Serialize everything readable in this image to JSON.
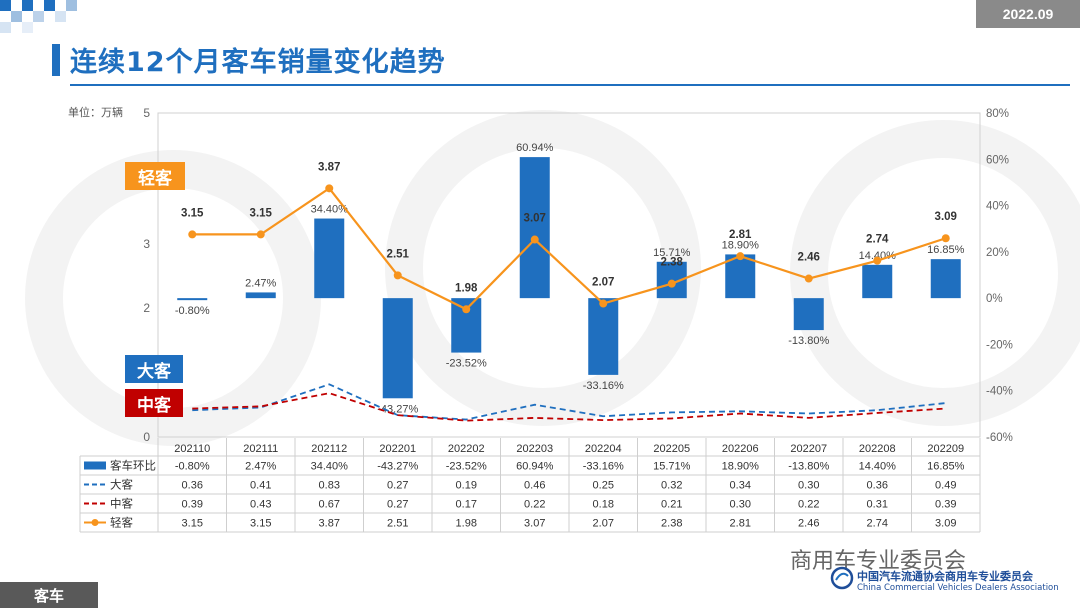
{
  "period": "2022.09",
  "title": "连续12个月客车销量变化趋势",
  "footer_label": "客车",
  "org": {
    "wechat_name": "商用车专业委员会",
    "cn_name": "中国汽车流通协会商用车专业委员会",
    "en_name": "China Commercial Vehicles Dealers Association"
  },
  "tags": {
    "light": "轻客",
    "large": "大客",
    "mid": "中客"
  },
  "colors": {
    "bar": "#1f6fbf",
    "light": "#f7941d",
    "large": "#1f6fbf",
    "mid": "#c00000",
    "accent": "#1f6fbf"
  },
  "chart_data": {
    "type": "bar",
    "unit_label": "单位：万辆",
    "categories": [
      "202110",
      "202111",
      "202112",
      "202201",
      "202202",
      "202203",
      "202204",
      "202205",
      "202206",
      "202207",
      "202208",
      "202209"
    ],
    "left_axis": {
      "min": 0,
      "max": 5,
      "ticks": [
        "0",
        "2",
        "3",
        "5"
      ]
    },
    "right_axis": {
      "min": -60,
      "max": 80,
      "ticks": [
        "-60%",
        "-40%",
        "-20%",
        "0%",
        "20%",
        "40%",
        "60%",
        "80%"
      ]
    },
    "series": [
      {
        "name": "客车环比",
        "type": "bar",
        "axis": "right",
        "values": [
          -0.8,
          2.47,
          34.4,
          -43.27,
          -23.52,
          60.94,
          -33.16,
          15.71,
          18.9,
          -13.8,
          14.4,
          16.85
        ],
        "labels": [
          "-0.80%",
          "2.47%",
          "34.40%",
          "-43.27%",
          "-23.52%",
          "60.94%",
          "-33.16%",
          "15.71%",
          "18.90%",
          "-13.80%",
          "14.40%",
          "16.85%"
        ]
      },
      {
        "name": "大客",
        "type": "line-dashed",
        "axis": "left",
        "values": [
          0.36,
          0.41,
          0.83,
          0.27,
          0.19,
          0.46,
          0.25,
          0.32,
          0.34,
          0.3,
          0.36,
          0.49
        ],
        "labels": [
          "0.36",
          "0.41",
          "0.83",
          "0.27",
          "0.19",
          "0.46",
          "0.25",
          "0.32",
          "0.34",
          "0.30",
          "0.36",
          "0.49"
        ]
      },
      {
        "name": "中客",
        "type": "line-dashed",
        "axis": "left",
        "values": [
          0.39,
          0.43,
          0.67,
          0.27,
          0.17,
          0.22,
          0.18,
          0.21,
          0.3,
          0.22,
          0.31,
          0.39
        ],
        "labels": [
          "0.39",
          "0.43",
          "0.67",
          "0.27",
          "0.17",
          "0.22",
          "0.18",
          "0.21",
          "0.30",
          "0.22",
          "0.31",
          "0.39"
        ]
      },
      {
        "name": "轻客",
        "type": "line-marker",
        "axis": "left",
        "values": [
          3.15,
          3.15,
          3.87,
          2.51,
          1.98,
          3.07,
          2.07,
          2.38,
          2.81,
          2.46,
          2.74,
          3.09
        ],
        "labels": [
          "3.15",
          "3.15",
          "3.87",
          "2.51",
          "1.98",
          "3.07",
          "2.07",
          "2.38",
          "2.81",
          "2.46",
          "2.74",
          "3.09"
        ]
      }
    ]
  }
}
